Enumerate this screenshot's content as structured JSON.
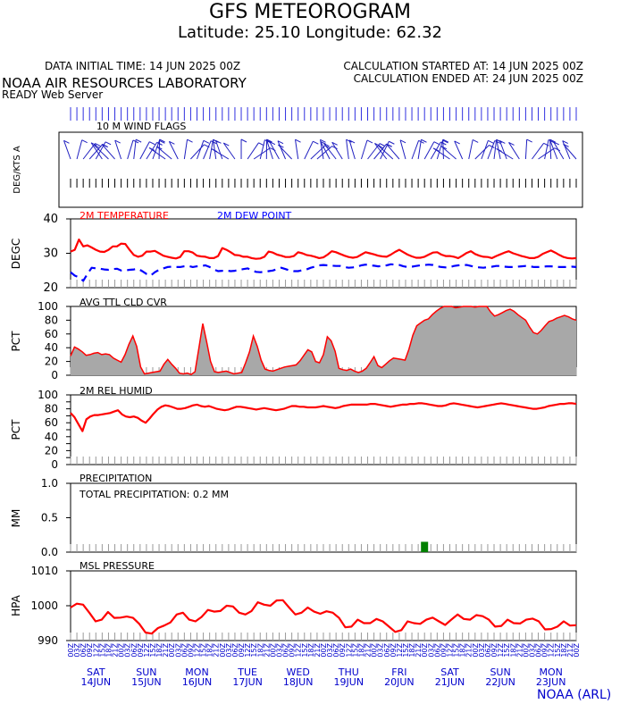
{
  "header": {
    "title": "GFS METEOROGRAM",
    "subtitle": "Latitude: 25.10 Longitude:  62.32",
    "init_time": "DATA INITIAL TIME: 14 JUN 2025 00Z",
    "calc_started": "CALCULATION STARTED AT: 14 JUN 2025 00Z",
    "calc_ended": "CALCULATION ENDED AT: 24 JUN 2025 00Z",
    "lab": "NOAA AIR RESOURCES LABORATORY",
    "server": "READY Web Server",
    "footer": "NOAA (ARL)"
  },
  "colors": {
    "temp": "#ff0000",
    "dew": "#0000ff",
    "cloud_fill": "#a8a8a8",
    "precip": "#008000",
    "axis": "#000000",
    "date": "#0000cc"
  },
  "days": [
    {
      "dow": "SAT",
      "date": "14JUN"
    },
    {
      "dow": "SUN",
      "date": "15JUN"
    },
    {
      "dow": "MON",
      "date": "16JUN"
    },
    {
      "dow": "TUE",
      "date": "17JUN"
    },
    {
      "dow": "WED",
      "date": "18JUN"
    },
    {
      "dow": "THU",
      "date": "19JUN"
    },
    {
      "dow": "FRI",
      "date": "20JUN"
    },
    {
      "dow": "SAT",
      "date": "21JUN"
    },
    {
      "dow": "SUN",
      "date": "22JUN"
    },
    {
      "dow": "MON",
      "date": "23JUN"
    }
  ],
  "chart_data": [
    {
      "type": "wind_barbs",
      "title": "10 M  WIND FLAGS",
      "ylabel": "DEG/KTS  A",
      "hours": 240,
      "step_hours": 3
    },
    {
      "type": "line",
      "ylabel": "DEGC",
      "ylim": [
        20,
        40
      ],
      "yticks": [
        20,
        30,
        40
      ],
      "series": [
        {
          "name": "2M TEMPERATURE",
          "style": "solid",
          "values": [
            30.5,
            31.0,
            34.0,
            32.0,
            32.3,
            31.7,
            31.0,
            30.5,
            30.4,
            31.0,
            32.0,
            32.0,
            32.8,
            32.7,
            31.0,
            29.5,
            29.0,
            29.3,
            30.5,
            30.5,
            30.7,
            30.0,
            29.3,
            29.0,
            28.7,
            28.5,
            28.9,
            30.6,
            30.6,
            30.2,
            29.3,
            29.1,
            29.0,
            28.6,
            28.6,
            29.2,
            31.5,
            31.0,
            30.3,
            29.5,
            29.4,
            29.0,
            29.0,
            28.6,
            28.4,
            28.5,
            29.0,
            30.5,
            30.2,
            29.6,
            29.3,
            28.9,
            28.9,
            29.2,
            30.3,
            30.0,
            29.5,
            29.3,
            29.0,
            28.6,
            28.8,
            29.6,
            30.6,
            30.3,
            29.8,
            29.3,
            28.9,
            28.7,
            28.9,
            29.6,
            30.3,
            30.0,
            29.7,
            29.3,
            29.1,
            29.0,
            29.6,
            30.4,
            31.0,
            30.3,
            29.6,
            29.1,
            28.7,
            28.7,
            29.0,
            29.6,
            30.2,
            30.3,
            29.6,
            29.2,
            29.2,
            29.0,
            28.6,
            29.3,
            30.1,
            30.6,
            29.8,
            29.3,
            29.0,
            28.9,
            28.6,
            29.2,
            29.7,
            30.2,
            30.6,
            30.0,
            29.6,
            29.2,
            28.9,
            28.6,
            28.6,
            29.0,
            29.8,
            30.3,
            30.8,
            30.2,
            29.5,
            28.9,
            28.6,
            28.5,
            28.6
          ]
        },
        {
          "name": "2M  DEW POINT",
          "style": "dashed",
          "values": [
            24.5,
            23.5,
            23.0,
            22.0,
            24.0,
            25.8,
            25.6,
            25.5,
            25.3,
            25.2,
            25.4,
            25.5,
            25.0,
            25.0,
            25.2,
            25.3,
            25.5,
            24.8,
            24.0,
            23.5,
            24.5,
            25.2,
            25.6,
            26.0,
            26.1,
            26.0,
            26.0,
            26.2,
            26.3,
            26.0,
            26.2,
            26.3,
            26.5,
            26.0,
            25.3,
            24.8,
            24.9,
            25.0,
            24.8,
            24.9,
            25.2,
            25.4,
            25.6,
            25.1,
            24.6,
            24.5,
            24.6,
            24.8,
            25.0,
            25.4,
            25.8,
            25.4,
            25.0,
            24.8,
            24.8,
            25.1,
            25.3,
            25.8,
            26.1,
            26.5,
            26.6,
            26.5,
            26.4,
            26.3,
            26.3,
            26.0,
            25.8,
            25.9,
            26.1,
            26.5,
            26.7,
            26.5,
            26.4,
            26.2,
            26.3,
            26.5,
            26.8,
            26.7,
            26.6,
            26.2,
            26.0,
            26.1,
            26.3,
            26.5,
            26.6,
            26.7,
            26.6,
            26.2,
            26.0,
            25.9,
            26.0,
            26.3,
            26.5,
            26.6,
            26.6,
            26.3,
            26.0,
            25.9,
            25.8,
            26.0,
            26.1,
            26.3,
            26.3,
            26.1,
            26.0,
            26.0,
            26.1,
            26.2,
            26.3,
            26.2,
            26.0,
            26.0,
            26.1,
            26.2,
            26.2,
            26.1,
            26.0,
            26.0,
            26.0,
            26.1,
            26.0
          ]
        }
      ]
    },
    {
      "type": "area",
      "title": "AVG TTL CLD CVR",
      "ylabel": "PCT",
      "ylim": [
        0,
        100
      ],
      "yticks": [
        0,
        20,
        40,
        60,
        80,
        100
      ],
      "values": [
        28,
        41,
        38,
        34,
        29,
        30,
        32,
        33,
        30,
        31,
        30,
        25,
        22,
        19,
        30,
        45,
        57,
        42,
        12,
        2,
        3,
        4,
        5,
        6,
        16,
        23,
        16,
        10,
        3,
        2,
        3,
        1,
        5,
        40,
        75,
        48,
        20,
        5,
        4,
        5,
        6,
        4,
        2,
        3,
        4,
        18,
        34,
        57,
        42,
        22,
        9,
        7,
        6,
        8,
        10,
        12,
        13,
        14,
        15,
        21,
        29,
        37,
        34,
        20,
        18,
        30,
        56,
        50,
        35,
        10,
        8,
        7,
        9,
        6,
        4,
        6,
        10,
        18,
        27,
        14,
        11,
        16,
        21,
        25,
        24,
        23,
        22,
        38,
        58,
        72,
        76,
        80,
        82,
        88,
        93,
        97,
        100,
        101,
        100,
        98,
        99,
        100,
        101,
        100,
        99,
        101,
        102,
        101,
        92,
        86,
        88,
        91,
        94,
        96,
        93,
        88,
        84,
        80,
        70,
        62,
        60,
        65,
        72,
        78,
        80,
        83,
        85,
        87,
        85,
        82,
        80
      ]
    },
    {
      "type": "line",
      "title": "2M REL HUMID",
      "ylabel": "PCT",
      "ylim": [
        0,
        100
      ],
      "yticks": [
        0,
        10,
        20,
        30,
        40,
        50,
        60,
        70,
        80,
        90,
        100
      ],
      "values": [
        74,
        68,
        58,
        48,
        65,
        69,
        71,
        71,
        72,
        73,
        74,
        76,
        78,
        72,
        69,
        68,
        69,
        67,
        63,
        60,
        66,
        73,
        79,
        83,
        85,
        84,
        82,
        80,
        80,
        81,
        83,
        85,
        86,
        84,
        83,
        84,
        82,
        80,
        79,
        78,
        79,
        81,
        83,
        83,
        82,
        81,
        80,
        79,
        80,
        81,
        80,
        79,
        78,
        79,
        80,
        82,
        84,
        84,
        83,
        83,
        82,
        82,
        82,
        83,
        84,
        83,
        82,
        81,
        82,
        84,
        85,
        86,
        86,
        86,
        86,
        86,
        87,
        87,
        86,
        85,
        84,
        83,
        84,
        85,
        86,
        86,
        87,
        87,
        88,
        88,
        87,
        86,
        85,
        84,
        84,
        85,
        87,
        88,
        87,
        86,
        85,
        84,
        83,
        82,
        83,
        84,
        85,
        86,
        87,
        88,
        87,
        86,
        85,
        84,
        83,
        82,
        81,
        80,
        80,
        81,
        82,
        84,
        85,
        86,
        87,
        87,
        88,
        88,
        87
      ]
    },
    {
      "type": "bar",
      "title": "PRECIPITATION",
      "annotation": "TOTAL PRECIPITATION:   0.2 MM",
      "ylabel": "MM",
      "ylim": [
        0.0,
        1.0
      ],
      "yticklabels": [
        "0.0",
        "0.5",
        "1.0"
      ],
      "bars": [
        {
          "hour": 168,
          "value": 0.15
        }
      ]
    },
    {
      "type": "line",
      "title": "MSL PRESSURE",
      "ylabel": "HPA",
      "ylim": [
        990,
        1010
      ],
      "yticks": [
        990,
        1000,
        1010
      ],
      "values": [
        999.5,
        1000.6,
        1000.3,
        998.0,
        995.5,
        996.0,
        998.2,
        996.5,
        996.6,
        996.9,
        996.5,
        994.8,
        992.3,
        992.0,
        993.6,
        994.3,
        995.2,
        997.5,
        998.0,
        996.0,
        995.5,
        996.8,
        998.8,
        998.3,
        998.5,
        1000.0,
        999.8,
        998.0,
        997.5,
        998.5,
        1001.0,
        1000.3,
        1000.0,
        1001.5,
        1001.6,
        999.5,
        997.5,
        998.0,
        999.5,
        998.3,
        997.7,
        998.4,
        998.0,
        996.5,
        993.8,
        994.0,
        996.0,
        995.0,
        995.0,
        996.2,
        995.5,
        994.0,
        992.5,
        993.0,
        995.5,
        995.0,
        994.8,
        996.0,
        996.6,
        995.5,
        994.5,
        996.0,
        997.5,
        996.2,
        996.0,
        997.3,
        997.0,
        996.0,
        994.0,
        994.2,
        996.0,
        995.0,
        994.9,
        996.0,
        996.3,
        995.5,
        993.2,
        993.3,
        994.0,
        995.5,
        994.3,
        994.4
      ]
    }
  ]
}
